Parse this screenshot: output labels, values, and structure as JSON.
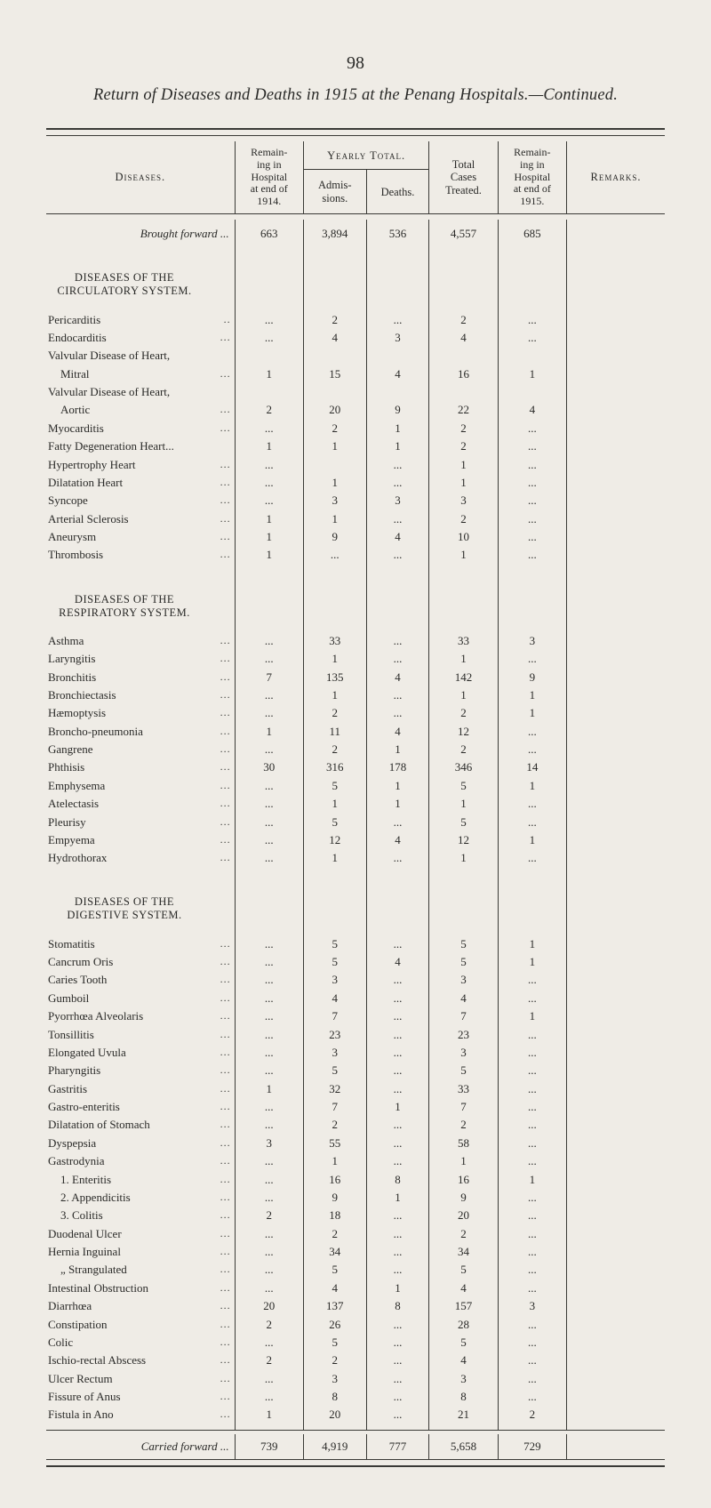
{
  "page_number": "98",
  "title": "Return of Diseases and Deaths in 1915 at the Penang Hospitals.—Continued.",
  "colors": {
    "background": "#efece6",
    "rule": "#3a3a36",
    "text": "#2a2a28"
  },
  "typography": {
    "body_font": "Times New Roman",
    "body_size_pt": 10,
    "title_style": "italic"
  },
  "header": {
    "diseases": "Diseases.",
    "remaining_in_1914_l1": "Remain-",
    "remaining_in_1914_l2": "ing in",
    "remaining_in_1914_l3": "Hospital",
    "remaining_in_1914_l4": "at end of",
    "remaining_in_1914_l5": "1914.",
    "yearly_total": "Yearly Total.",
    "admis_l1": "Admis-",
    "admis_l2": "sions.",
    "deaths": "Deaths.",
    "total_l1": "Total",
    "total_l2": "Cases",
    "total_l3": "Treated.",
    "remaining_in_1915_l1": "Remain-",
    "remaining_in_1915_l2": "ing in",
    "remaining_in_1915_l3": "Hospital",
    "remaining_in_1915_l4": "at end of",
    "remaining_in_1915_l5": "1915.",
    "remarks": "Remarks."
  },
  "brought_forward": {
    "label": "Brought forward ...",
    "remain1914": "663",
    "admissions": "3,894",
    "deaths": "536",
    "total": "4,557",
    "remain1915": "685"
  },
  "sections": [
    {
      "heading_lines": [
        "DISEASES OF THE",
        "CIRCULATORY SYSTEM."
      ],
      "rows": [
        {
          "name": "Pericarditis",
          "dots": "..",
          "r14": "...",
          "adm": "2",
          "dth": "...",
          "tot": "2",
          "r15": "..."
        },
        {
          "name": "Endocarditis",
          "dots": "...",
          "r14": "...",
          "adm": "4",
          "dth": "3",
          "tot": "4",
          "r15": "..."
        },
        {
          "name": "Valvular Disease of Heart,",
          "dots": "",
          "r14": "",
          "adm": "",
          "dth": "",
          "tot": "",
          "r15": ""
        },
        {
          "name": "Mitral",
          "indent": 1,
          "dots": "...",
          "r14": "1",
          "adm": "15",
          "dth": "4",
          "tot": "16",
          "r15": "1"
        },
        {
          "name": "Valvular Disease of Heart,",
          "dots": "",
          "r14": "",
          "adm": "",
          "dth": "",
          "tot": "",
          "r15": ""
        },
        {
          "name": "Aortic",
          "indent": 1,
          "dots": "...",
          "r14": "2",
          "adm": "20",
          "dth": "9",
          "tot": "22",
          "r15": "4"
        },
        {
          "name": "Myocarditis",
          "dots": "...",
          "r14": "...",
          "adm": "2",
          "dth": "1",
          "tot": "2",
          "r15": "..."
        },
        {
          "name": "Fatty Degeneration Heart...",
          "dots": "",
          "r14": "1",
          "adm": "1",
          "dth": "1",
          "tot": "2",
          "r15": "..."
        },
        {
          "name": "Hypertrophy Heart",
          "dots": "...",
          "r14": "...",
          "adm": "",
          "dth": "...",
          "tot": "1",
          "r15": "..."
        },
        {
          "name": "Dilatation Heart",
          "dots": "...",
          "r14": "...",
          "adm": "1",
          "dth": "...",
          "tot": "1",
          "r15": "..."
        },
        {
          "name": "Syncope",
          "dots": "...",
          "r14": "...",
          "adm": "3",
          "dth": "3",
          "tot": "3",
          "r15": "..."
        },
        {
          "name": "Arterial Sclerosis",
          "dots": "...",
          "r14": "1",
          "adm": "1",
          "dth": "...",
          "tot": "2",
          "r15": "..."
        },
        {
          "name": "Aneurysm",
          "dots": "...",
          "r14": "1",
          "adm": "9",
          "dth": "4",
          "tot": "10",
          "r15": "..."
        },
        {
          "name": "Thrombosis",
          "dots": "...",
          "r14": "1",
          "adm": "...",
          "dth": "...",
          "tot": "1",
          "r15": "..."
        }
      ]
    },
    {
      "heading_lines": [
        "DISEASES OF THE",
        "RESPIRATORY SYSTEM."
      ],
      "rows": [
        {
          "name": "Asthma",
          "dots": "...",
          "r14": "...",
          "adm": "33",
          "dth": "...",
          "tot": "33",
          "r15": "3"
        },
        {
          "name": "Laryngitis",
          "dots": "...",
          "r14": "...",
          "adm": "1",
          "dth": "...",
          "tot": "1",
          "r15": "..."
        },
        {
          "name": "Bronchitis",
          "dots": "...",
          "r14": "7",
          "adm": "135",
          "dth": "4",
          "tot": "142",
          "r15": "9"
        },
        {
          "name": "Bronchiectasis",
          "dots": "...",
          "r14": "...",
          "adm": "1",
          "dth": "...",
          "tot": "1",
          "r15": "1"
        },
        {
          "name": "Hæmoptysis",
          "dots": "...",
          "r14": "...",
          "adm": "2",
          "dth": "...",
          "tot": "2",
          "r15": "1"
        },
        {
          "name": "Broncho-pneumonia",
          "dots": "...",
          "r14": "1",
          "adm": "11",
          "dth": "4",
          "tot": "12",
          "r15": "..."
        },
        {
          "name": "Gangrene",
          "dots": "...",
          "r14": "...",
          "adm": "2",
          "dth": "1",
          "tot": "2",
          "r15": "..."
        },
        {
          "name": "Phthisis",
          "dots": "...",
          "r14": "30",
          "adm": "316",
          "dth": "178",
          "tot": "346",
          "r15": "14"
        },
        {
          "name": "Emphysema",
          "dots": "...",
          "r14": "...",
          "adm": "5",
          "dth": "1",
          "tot": "5",
          "r15": "1"
        },
        {
          "name": "Atelectasis",
          "dots": "...",
          "r14": "...",
          "adm": "1",
          "dth": "1",
          "tot": "1",
          "r15": "..."
        },
        {
          "name": "Pleurisy",
          "dots": "...",
          "r14": "...",
          "adm": "5",
          "dth": "...",
          "tot": "5",
          "r15": "..."
        },
        {
          "name": "Empyema",
          "dots": "...",
          "r14": "...",
          "adm": "12",
          "dth": "4",
          "tot": "12",
          "r15": "1"
        },
        {
          "name": "Hydrothorax",
          "dots": "...",
          "r14": "...",
          "adm": "1",
          "dth": "...",
          "tot": "1",
          "r15": "..."
        }
      ]
    },
    {
      "heading_lines": [
        "DISEASES OF THE",
        "DIGESTIVE SYSTEM."
      ],
      "rows": [
        {
          "name": "Stomatitis",
          "dots": "...",
          "r14": "...",
          "adm": "5",
          "dth": "...",
          "tot": "5",
          "r15": "1"
        },
        {
          "name": "Cancrum Oris",
          "dots": "...",
          "r14": "...",
          "adm": "5",
          "dth": "4",
          "tot": "5",
          "r15": "1"
        },
        {
          "name": "Caries Tooth",
          "dots": "...",
          "r14": "...",
          "adm": "3",
          "dth": "...",
          "tot": "3",
          "r15": "..."
        },
        {
          "name": "Gumboil",
          "dots": "...",
          "r14": "...",
          "adm": "4",
          "dth": "...",
          "tot": "4",
          "r15": "..."
        },
        {
          "name": "Pyorrhœa Alveolaris",
          "dots": "...",
          "r14": "...",
          "adm": "7",
          "dth": "...",
          "tot": "7",
          "r15": "1"
        },
        {
          "name": "Tonsillitis",
          "dots": "...",
          "r14": "...",
          "adm": "23",
          "dth": "...",
          "tot": "23",
          "r15": "..."
        },
        {
          "name": "Elongated Uvula",
          "dots": "...",
          "r14": "...",
          "adm": "3",
          "dth": "...",
          "tot": "3",
          "r15": "..."
        },
        {
          "name": "Pharyngitis",
          "dots": "...",
          "r14": "...",
          "adm": "5",
          "dth": "...",
          "tot": "5",
          "r15": "..."
        },
        {
          "name": "Gastritis",
          "dots": "...",
          "r14": "1",
          "adm": "32",
          "dth": "...",
          "tot": "33",
          "r15": "..."
        },
        {
          "name": "Gastro-enteritis",
          "dots": "...",
          "r14": "...",
          "adm": "7",
          "dth": "1",
          "tot": "7",
          "r15": "..."
        },
        {
          "name": "Dilatation of Stomach",
          "dots": "...",
          "r14": "...",
          "adm": "2",
          "dth": "...",
          "tot": "2",
          "r15": "..."
        },
        {
          "name": "Dyspepsia",
          "dots": "...",
          "r14": "3",
          "adm": "55",
          "dth": "...",
          "tot": "58",
          "r15": "..."
        },
        {
          "name": "Gastrodynia",
          "dots": "...",
          "r14": "...",
          "adm": "1",
          "dth": "...",
          "tot": "1",
          "r15": "..."
        },
        {
          "name": "1. Enteritis",
          "indent": 1,
          "dots": "...",
          "r14": "...",
          "adm": "16",
          "dth": "8",
          "tot": "16",
          "r15": "1"
        },
        {
          "name": "2. Appendicitis",
          "indent": 1,
          "dots": "...",
          "r14": "...",
          "adm": "9",
          "dth": "1",
          "tot": "9",
          "r15": "..."
        },
        {
          "name": "3. Colitis",
          "indent": 1,
          "dots": "...",
          "r14": "2",
          "adm": "18",
          "dth": "...",
          "tot": "20",
          "r15": "..."
        },
        {
          "name": "Duodenal Ulcer",
          "dots": "...",
          "r14": "...",
          "adm": "2",
          "dth": "...",
          "tot": "2",
          "r15": "..."
        },
        {
          "name": "Hernia Inguinal",
          "dots": "...",
          "r14": "...",
          "adm": "34",
          "dth": "...",
          "tot": "34",
          "r15": "..."
        },
        {
          "name": "„    Strangulated",
          "indent": 1,
          "dots": "...",
          "r14": "...",
          "adm": "5",
          "dth": "...",
          "tot": "5",
          "r15": "..."
        },
        {
          "name": "Intestinal Obstruction",
          "dots": "...",
          "r14": "...",
          "adm": "4",
          "dth": "1",
          "tot": "4",
          "r15": "..."
        },
        {
          "name": "Diarrhœa",
          "dots": "...",
          "r14": "20",
          "adm": "137",
          "dth": "8",
          "tot": "157",
          "r15": "3"
        },
        {
          "name": "Constipation",
          "dots": "...",
          "r14": "2",
          "adm": "26",
          "dth": "...",
          "tot": "28",
          "r15": "..."
        },
        {
          "name": "Colic",
          "dots": "...",
          "r14": "...",
          "adm": "5",
          "dth": "...",
          "tot": "5",
          "r15": "..."
        },
        {
          "name": "Ischio-rectal Abscess",
          "dots": "...",
          "r14": "2",
          "adm": "2",
          "dth": "...",
          "tot": "4",
          "r15": "..."
        },
        {
          "name": "Ulcer Rectum",
          "dots": "...",
          "r14": "...",
          "adm": "3",
          "dth": "...",
          "tot": "3",
          "r15": "..."
        },
        {
          "name": "Fissure of Anus",
          "dots": "...",
          "r14": "...",
          "adm": "8",
          "dth": "...",
          "tot": "8",
          "r15": "..."
        },
        {
          "name": "Fistula in Ano",
          "dots": "...",
          "r14": "1",
          "adm": "20",
          "dth": "...",
          "tot": "21",
          "r15": "2"
        }
      ]
    }
  ],
  "carried_forward": {
    "label": "Carried forward ...",
    "remain1914": "739",
    "admissions": "4,919",
    "deaths": "777",
    "total": "5,658",
    "remain1915": "729"
  }
}
